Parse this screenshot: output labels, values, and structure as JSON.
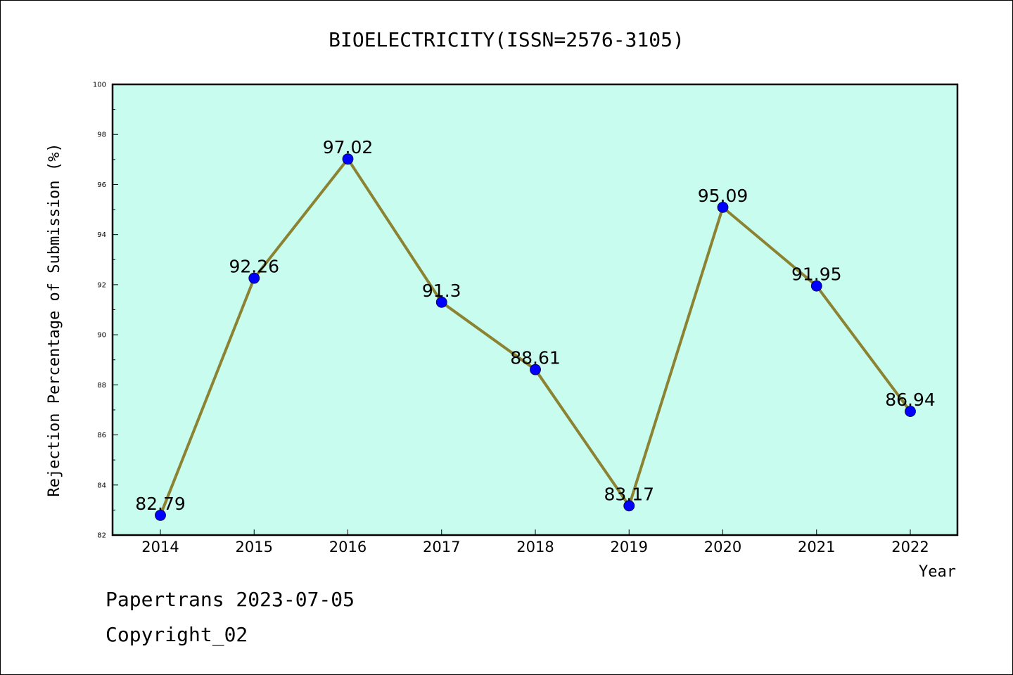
{
  "chart_data": {
    "type": "line",
    "title": "BIOELECTRICITY(ISSN=2576-3105)",
    "xlabel": "Year",
    "ylabel": "Rejection Percentage of Submission (%)",
    "categories": [
      "2014",
      "2015",
      "2016",
      "2017",
      "2018",
      "2019",
      "2020",
      "2021",
      "2022"
    ],
    "values": [
      82.79,
      92.26,
      97.02,
      91.3,
      88.61,
      83.17,
      95.09,
      91.95,
      86.94
    ],
    "data_labels": [
      "82.79",
      "92.26",
      "97.02",
      "91.3",
      "88.61",
      "83.17",
      "95.09",
      "91.95",
      "86.94"
    ],
    "ylim": [
      82,
      100
    ],
    "yticks": [
      82,
      84,
      86,
      88,
      90,
      92,
      94,
      96,
      98,
      100
    ],
    "grid": false,
    "legend": "none",
    "colors": {
      "plot_background": "#c8fcee",
      "line": "#8b8232",
      "marker": "#0000ff"
    }
  },
  "footer": {
    "line1": "Papertrans 2023-07-05",
    "line2": "Copyright_02"
  }
}
